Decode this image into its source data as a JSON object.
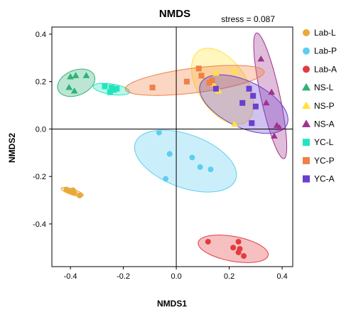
{
  "chart_data": {
    "type": "scatter",
    "title": "NMDS",
    "annotation": "stress = 0.087",
    "xlabel": "NMDS1",
    "ylabel": "NMDS2",
    "xlim": [
      -0.47,
      0.44
    ],
    "ylim": [
      -0.58,
      0.43
    ],
    "xticks": [
      -0.4,
      -0.2,
      0.0,
      0.2,
      0.4
    ],
    "xtick_labels": [
      "-0.4",
      "-0.2",
      "0.0",
      "0.2",
      "0.4"
    ],
    "yticks": [
      -0.4,
      -0.2,
      0.0,
      0.2,
      0.4
    ],
    "ytick_labels": [
      "-0.4",
      "-0.2",
      "0.0",
      "0.2",
      "0.4"
    ],
    "reference_lines": {
      "x": 0.0,
      "y": 0.0
    },
    "grid": false,
    "legend_position": "right",
    "series": [
      {
        "name": "Lab-L",
        "marker": "circle",
        "color": "#E9A93A",
        "points": [
          [
            -0.415,
            -0.255
          ],
          [
            -0.405,
            -0.26
          ],
          [
            -0.395,
            -0.265
          ],
          [
            -0.39,
            -0.258
          ],
          [
            -0.385,
            -0.27
          ],
          [
            -0.365,
            -0.28
          ]
        ],
        "ellipse": {
          "cx": -0.393,
          "cy": -0.265,
          "rx": 0.045,
          "ry": 0.012,
          "angle": -20
        }
      },
      {
        "name": "Lab-P",
        "marker": "circle",
        "color": "#5DCEEE",
        "points": [
          [
            -0.065,
            -0.015
          ],
          [
            -0.025,
            -0.105
          ],
          [
            -0.04,
            -0.21
          ],
          [
            0.06,
            -0.12
          ],
          [
            0.09,
            -0.16
          ],
          [
            0.13,
            -0.17
          ]
        ],
        "ellipse": {
          "cx": 0.035,
          "cy": -0.135,
          "rx": 0.205,
          "ry": 0.11,
          "angle": -24
        }
      },
      {
        "name": "Lab-A",
        "marker": "circle",
        "color": "#E33B3E",
        "points": [
          [
            0.12,
            -0.475
          ],
          [
            0.215,
            -0.5
          ],
          [
            0.235,
            -0.475
          ],
          [
            0.235,
            -0.52
          ],
          [
            0.255,
            -0.535
          ],
          [
            0.24,
            -0.505
          ]
        ],
        "ellipse": {
          "cx": 0.215,
          "cy": -0.505,
          "rx": 0.135,
          "ry": 0.052,
          "angle": -12
        }
      },
      {
        "name": "NS-L",
        "marker": "triangle",
        "color": "#2FB276",
        "points": [
          [
            -0.4,
            0.22
          ],
          [
            -0.38,
            0.225
          ],
          [
            -0.405,
            0.175
          ],
          [
            -0.385,
            0.16
          ],
          [
            -0.34,
            0.225
          ]
        ],
        "ellipse": {
          "cx": -0.378,
          "cy": 0.195,
          "rx": 0.075,
          "ry": 0.052,
          "angle": 28
        }
      },
      {
        "name": "NS-P",
        "marker": "triangle",
        "color": "#FFE33A",
        "points": [
          [
            0.15,
            0.235
          ],
          [
            0.22,
            0.245
          ],
          [
            0.14,
            0.19
          ],
          [
            0.16,
            0.16
          ],
          [
            0.22,
            0.02
          ]
        ],
        "ellipse": {
          "cx": 0.175,
          "cy": 0.18,
          "rx": 0.175,
          "ry": 0.095,
          "angle": -62
        }
      },
      {
        "name": "NS-A",
        "marker": "triangle",
        "color": "#A0328C",
        "points": [
          [
            0.32,
            0.295
          ],
          [
            0.36,
            0.155
          ],
          [
            0.34,
            0.11
          ],
          [
            0.38,
            0.015
          ],
          [
            0.37,
            -0.03
          ],
          [
            0.39,
            0.005
          ]
        ],
        "ellipse": {
          "cx": 0.355,
          "cy": 0.14,
          "rx": 0.27,
          "ry": 0.036,
          "angle": -79
        }
      },
      {
        "name": "YC-L",
        "marker": "square",
        "color": "#22E5BE",
        "points": [
          [
            -0.27,
            0.18
          ],
          [
            -0.245,
            0.175
          ],
          [
            -0.235,
            0.165
          ],
          [
            -0.25,
            0.155
          ],
          [
            -0.225,
            0.17
          ]
        ],
        "ellipse": {
          "cx": -0.245,
          "cy": 0.168,
          "rx": 0.07,
          "ry": 0.022,
          "angle": -10
        }
      },
      {
        "name": "YC-P",
        "marker": "square",
        "color": "#F08045",
        "points": [
          [
            -0.09,
            0.175
          ],
          [
            0.04,
            0.2
          ],
          [
            0.085,
            0.255
          ],
          [
            0.095,
            0.225
          ],
          [
            0.125,
            0.195
          ],
          [
            0.135,
            0.205
          ]
        ],
        "ellipse": {
          "cx": 0.07,
          "cy": 0.205,
          "rx": 0.265,
          "ry": 0.052,
          "angle": 8
        }
      },
      {
        "name": "YC-A",
        "marker": "square",
        "color": "#6A3ECF",
        "points": [
          [
            0.15,
            0.17
          ],
          [
            0.25,
            0.11
          ],
          [
            0.275,
            0.17
          ],
          [
            0.29,
            0.14
          ],
          [
            0.285,
            0.025
          ],
          [
            0.3,
            0.095
          ]
        ],
        "ellipse": {
          "cx": 0.255,
          "cy": 0.105,
          "rx": 0.185,
          "ry": 0.095,
          "angle": -30
        }
      }
    ]
  }
}
